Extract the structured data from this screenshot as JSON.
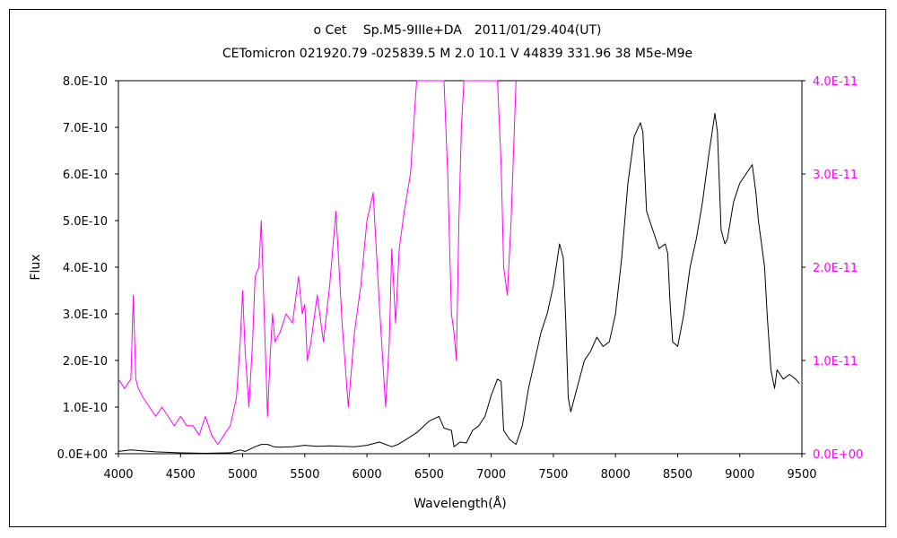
{
  "chart_data": {
    "type": "line",
    "title": "ο Cet　 Sp.M5-9IIIe+DA　2011/01/29.404(UT)",
    "subtitle": "CETomicron 021920.79 -025839.5 M 2.0 10.1 V 44839 331.96 38 M5e-M9e",
    "xlabel": "Wavelength(Å)",
    "ylabel": "Flux",
    "xlim": [
      4000,
      9500
    ],
    "x_ticks": [
      4000,
      4500,
      5000,
      5500,
      6000,
      6500,
      7000,
      7500,
      8000,
      8500,
      9000,
      9500
    ],
    "x_tick_labels": [
      "4000",
      "4500",
      "5000",
      "5500",
      "6000",
      "6500",
      "7000",
      "7500",
      "8000",
      "8500",
      "9000",
      "9500"
    ],
    "y_left": {
      "ylim": [
        0,
        8e-10
      ],
      "ticks": [
        0,
        1e-10,
        2e-10,
        3e-10,
        4e-10,
        5e-10,
        6e-10,
        7e-10,
        8e-10
      ],
      "tick_labels": [
        "0.0E+00",
        "1.0E-10",
        "2.0E-10",
        "3.0E-10",
        "4.0E-10",
        "5.0E-10",
        "6.0E-10",
        "7.0E-10",
        "8.0E-10"
      ],
      "color": "#000000"
    },
    "y_right": {
      "ylim": [
        0,
        4e-11
      ],
      "ticks": [
        0,
        1e-11,
        2e-11,
        3e-11,
        4e-11
      ],
      "tick_labels": [
        "0.0E+00",
        "1.0E-11",
        "2.0E-11",
        "3.0E-11",
        "4.0E-11"
      ],
      "color": "#ff00ff"
    },
    "grid": false,
    "series": [
      {
        "axis": "left",
        "color": "#000000",
        "x": [
          4000,
          4100,
          4200,
          4300,
          4500,
          4700,
          4900,
          4980,
          5020,
          5060,
          5100,
          5150,
          5200,
          5250,
          5300,
          5400,
          5500,
          5600,
          5700,
          5800,
          5900,
          6000,
          6100,
          6200,
          6250,
          6300,
          6400,
          6500,
          6580,
          6620,
          6680,
          6700,
          6750,
          6800,
          6850,
          6900,
          6950,
          7000,
          7050,
          7080,
          7100,
          7150,
          7200,
          7250,
          7300,
          7400,
          7450,
          7500,
          7550,
          7580,
          7600,
          7620,
          7640,
          7680,
          7700,
          7750,
          7800,
          7850,
          7900,
          7950,
          8000,
          8050,
          8100,
          8150,
          8200,
          8220,
          8250,
          8300,
          8350,
          8400,
          8420,
          8440,
          8460,
          8500,
          8550,
          8600,
          8650,
          8700,
          8750,
          8800,
          8820,
          8850,
          8880,
          8900,
          8950,
          9000,
          9050,
          9100,
          9130,
          9150,
          9200,
          9220,
          9250,
          9280,
          9300,
          9350,
          9400,
          9450,
          9480
        ],
        "y": [
          5e-12,
          8e-12,
          6e-12,
          4e-12,
          2e-12,
          1e-12,
          2e-12,
          8e-12,
          5e-12,
          1e-11,
          1.5e-11,
          2e-11,
          2e-11,
          1.5e-11,
          1.4e-11,
          1.5e-11,
          1.8e-11,
          1.6e-11,
          1.7e-11,
          1.6e-11,
          1.5e-11,
          1.8e-11,
          2.5e-11,
          1.5e-11,
          2e-11,
          2.8e-11,
          4.5e-11,
          7e-11,
          8e-11,
          5.5e-11,
          5e-11,
          1.5e-11,
          2.5e-11,
          2.3e-11,
          5e-11,
          6e-11,
          8e-11,
          1.25e-10,
          1.6e-10,
          1.55e-10,
          5e-11,
          3e-11,
          2e-11,
          6e-11,
          1.4e-10,
          2.6e-10,
          3e-10,
          3.6e-10,
          4.5e-10,
          4.2e-10,
          2.8e-10,
          1.2e-10,
          9e-11,
          1.3e-10,
          1.5e-10,
          2e-10,
          2.2e-10,
          2.5e-10,
          2.3e-10,
          2.4e-10,
          3e-10,
          4.2e-10,
          5.8e-10,
          6.8e-10,
          7.1e-10,
          6.9e-10,
          5.2e-10,
          4.8e-10,
          4.4e-10,
          4.5e-10,
          4.3e-10,
          3.2e-10,
          2.4e-10,
          2.3e-10,
          3e-10,
          4e-10,
          4.6e-10,
          5.4e-10,
          6.4e-10,
          7.3e-10,
          6.9e-10,
          4.8e-10,
          4.5e-10,
          4.6e-10,
          5.4e-10,
          5.8e-10,
          6e-10,
          6.2e-10,
          5.6e-10,
          5e-10,
          4e-10,
          3e-10,
          1.8e-10,
          1.4e-10,
          1.8e-10,
          1.6e-10,
          1.7e-10,
          1.6e-10,
          1.5e-10
        ]
      },
      {
        "axis": "right",
        "color": "#ff00ff",
        "x": [
          4000,
          4050,
          4100,
          4120,
          4140,
          4160,
          4200,
          4250,
          4300,
          4350,
          4400,
          4450,
          4500,
          4550,
          4600,
          4650,
          4700,
          4750,
          4800,
          4850,
          4900,
          4950,
          4980,
          5000,
          5020,
          5050,
          5080,
          5100,
          5130,
          5150,
          5180,
          5200,
          5220,
          5240,
          5260,
          5300,
          5350,
          5400,
          5450,
          5480,
          5500,
          5520,
          5550,
          5600,
          5650,
          5700,
          5750,
          5800,
          5850,
          5900,
          5950,
          6000,
          6050,
          6100,
          6150,
          6180,
          6200,
          6230,
          6260,
          6300,
          6350,
          6400,
          6430,
          6460,
          6500,
          6540,
          6580,
          6620,
          6650,
          6680,
          6700,
          6720,
          6740,
          6760,
          6780,
          6800,
          6850,
          6900,
          6950,
          7000,
          7050,
          7080,
          7100,
          7130,
          7160,
          7200
        ],
        "y": [
          8e-12,
          7e-12,
          8e-12,
          1.7e-11,
          8e-12,
          7e-12,
          6e-12,
          5e-12,
          4e-12,
          5e-12,
          4e-12,
          3e-12,
          4e-12,
          3e-12,
          3e-12,
          2e-12,
          4e-12,
          2e-12,
          1e-12,
          2e-12,
          3e-12,
          6e-12,
          1.2e-11,
          1.75e-11,
          1.1e-11,
          5e-12,
          1.2e-11,
          1.9e-11,
          2e-11,
          2.5e-11,
          1.2e-11,
          4e-12,
          1e-11,
          1.5e-11,
          1.2e-11,
          1.3e-11,
          1.5e-11,
          1.4e-11,
          1.9e-11,
          1.5e-11,
          1.6e-11,
          1e-11,
          1.2e-11,
          1.7e-11,
          1.2e-11,
          1.8e-11,
          2.6e-11,
          1.4e-11,
          5e-12,
          1.3e-11,
          1.8e-11,
          2.5e-11,
          2.8e-11,
          1.6e-11,
          5e-12,
          1.2e-11,
          2.2e-11,
          1.4e-11,
          2.2e-11,
          2.6e-11,
          3e-11,
          4e-11,
          4e-11,
          4e-11,
          4e-11,
          4e-11,
          4e-11,
          4e-11,
          3e-11,
          1.5e-11,
          1.3e-11,
          1e-11,
          2.5e-11,
          3.5e-11,
          4e-11,
          4e-11,
          4e-11,
          4e-11,
          4e-11,
          4e-11,
          4e-11,
          3.1e-11,
          2e-11,
          1.7e-11,
          2.5e-11,
          4e-11
        ]
      }
    ]
  }
}
